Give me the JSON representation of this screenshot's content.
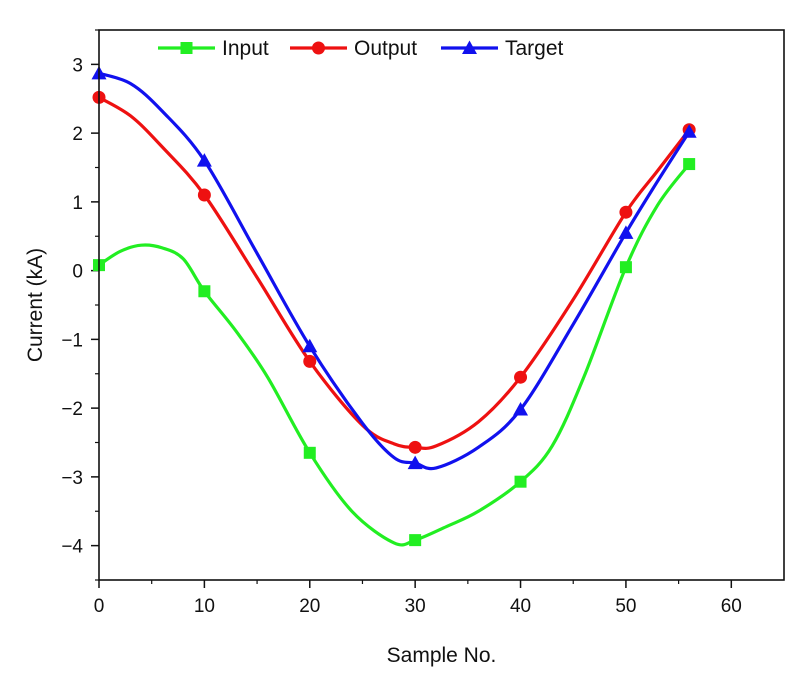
{
  "chart_data": {
    "type": "line",
    "title": "",
    "xlabel": "Sample No.",
    "ylabel": "Current (kA)",
    "xlim": [
      0,
      65
    ],
    "ylim": [
      -4.5,
      3.5
    ],
    "xticks": [
      0,
      10,
      20,
      30,
      40,
      50,
      60
    ],
    "yticks": [
      -4,
      -3,
      -2,
      -1,
      0,
      1,
      2,
      3
    ],
    "xtick_labels": [
      "0",
      "10",
      "20",
      "30",
      "40",
      "50",
      "60"
    ],
    "ytick_labels": [
      "−4",
      "−3",
      "−2",
      "−1",
      "0",
      "1",
      "2",
      "3"
    ],
    "grid": false,
    "legend_position": "top",
    "series": [
      {
        "name": "Input",
        "color": "#22ee22",
        "marker": "square",
        "x": [
          0,
          10,
          20,
          30,
          40,
          50,
          56
        ],
        "y": [
          0.08,
          -0.3,
          -2.65,
          -3.92,
          -3.07,
          0.05,
          1.55
        ],
        "curve": [
          [
            0,
            0.08
          ],
          [
            2,
            0.28
          ],
          [
            4,
            0.37
          ],
          [
            6,
            0.33
          ],
          [
            8,
            0.17
          ],
          [
            10,
            -0.3
          ],
          [
            13,
            -0.88
          ],
          [
            16,
            -1.55
          ],
          [
            20,
            -2.65
          ],
          [
            24,
            -3.5
          ],
          [
            28,
            -3.96
          ],
          [
            30,
            -3.92
          ],
          [
            33,
            -3.72
          ],
          [
            36,
            -3.5
          ],
          [
            40,
            -3.07
          ],
          [
            43,
            -2.55
          ],
          [
            46,
            -1.55
          ],
          [
            50,
            0.05
          ],
          [
            53,
            0.95
          ],
          [
            56,
            1.55
          ]
        ]
      },
      {
        "name": "Output",
        "color": "#ee1111",
        "marker": "circle",
        "x": [
          0,
          10,
          20,
          30,
          40,
          50,
          56
        ],
        "y": [
          2.52,
          1.1,
          -1.32,
          -2.57,
          -1.55,
          0.85,
          2.05
        ],
        "curve": [
          [
            0,
            2.52
          ],
          [
            3,
            2.25
          ],
          [
            6,
            1.8
          ],
          [
            10,
            1.1
          ],
          [
            15,
            -0.1
          ],
          [
            20,
            -1.32
          ],
          [
            25,
            -2.25
          ],
          [
            28,
            -2.52
          ],
          [
            30,
            -2.57
          ],
          [
            32,
            -2.55
          ],
          [
            36,
            -2.2
          ],
          [
            40,
            -1.55
          ],
          [
            45,
            -0.42
          ],
          [
            50,
            0.85
          ],
          [
            53,
            1.45
          ],
          [
            56,
            2.05
          ]
        ]
      },
      {
        "name": "Target",
        "color": "#1111ee",
        "marker": "triangle",
        "x": [
          0,
          10,
          20,
          30,
          40,
          50,
          56
        ],
        "y": [
          2.87,
          1.6,
          -1.1,
          -2.8,
          -2.02,
          0.55,
          2.02
        ],
        "curve": [
          [
            0,
            2.87
          ],
          [
            3,
            2.72
          ],
          [
            6,
            2.32
          ],
          [
            10,
            1.6
          ],
          [
            15,
            0.25
          ],
          [
            20,
            -1.1
          ],
          [
            25,
            -2.22
          ],
          [
            28,
            -2.72
          ],
          [
            30,
            -2.8
          ],
          [
            32,
            -2.87
          ],
          [
            36,
            -2.57
          ],
          [
            40,
            -2.02
          ],
          [
            45,
            -0.78
          ],
          [
            50,
            0.55
          ],
          [
            53,
            1.3
          ],
          [
            56,
            2.02
          ]
        ]
      }
    ]
  }
}
